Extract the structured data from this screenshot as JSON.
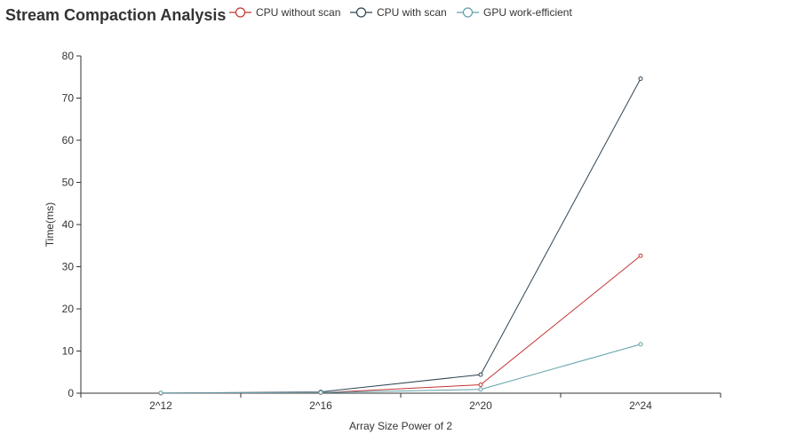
{
  "chart_data": {
    "type": "line",
    "title": "Stream Compaction Analysis",
    "xlabel": "Array Size Power of 2",
    "ylabel": "Time(ms)",
    "categories": [
      "2^12",
      "2^16",
      "2^20",
      "2^24"
    ],
    "ylim": [
      0,
      80
    ],
    "yticks": [
      0,
      10,
      20,
      30,
      40,
      50,
      60,
      70,
      80
    ],
    "grid": false,
    "legend_position": "top",
    "series": [
      {
        "name": "CPU without scan",
        "color": "#c23531",
        "values": [
          0.01,
          0.1,
          2.0,
          32.6
        ]
      },
      {
        "name": "CPU with scan",
        "color": "#2f4554",
        "values": [
          0.02,
          0.3,
          4.4,
          74.6
        ]
      },
      {
        "name": "GPU work-efficient",
        "color": "#61a0a8",
        "values": [
          0.05,
          0.15,
          0.9,
          11.6
        ]
      }
    ]
  }
}
